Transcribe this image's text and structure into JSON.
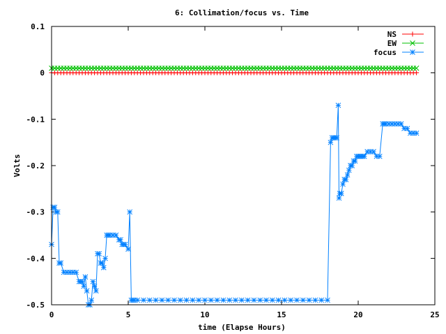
{
  "chart_data": {
    "type": "line",
    "title": "6: Collimation/focus vs. Time",
    "xlabel": "time (Elapse Hours)",
    "ylabel": "Volts",
    "xlim": [
      0,
      25
    ],
    "ylim": [
      -0.5,
      0.1
    ],
    "x_ticks": [
      0,
      5,
      10,
      15,
      20,
      25
    ],
    "x_tick_labels": [
      "0",
      "5",
      "10",
      "15",
      "20",
      "25"
    ],
    "y_ticks": [
      0.1,
      0,
      -0.1,
      -0.2,
      -0.3,
      -0.4,
      -0.5
    ],
    "y_tick_labels": [
      "0.1",
      "0",
      "-0.1",
      "-0.2",
      "-0.3",
      "-0.4",
      "-0.5"
    ],
    "grid": false,
    "legend_position": "top-right",
    "series": [
      {
        "name": "NS",
        "color": "#ff0000",
        "marker": "plus",
        "x": [
          0.0,
          0.2,
          0.4,
          0.6,
          0.8,
          1.0,
          1.2,
          1.4,
          1.6,
          1.8,
          2.0,
          2.2,
          2.4,
          2.6,
          2.8,
          3.0,
          3.2,
          3.4,
          3.6,
          3.8,
          4.0,
          4.2,
          4.4,
          4.6,
          4.8,
          5.0,
          5.2,
          5.4,
          5.6,
          5.8,
          6.0,
          6.2,
          6.4,
          6.6,
          6.8,
          7.0,
          7.2,
          7.4,
          7.6,
          7.8,
          8.0,
          8.2,
          8.4,
          8.6,
          8.8,
          9.0,
          9.2,
          9.4,
          9.6,
          9.8,
          10.0,
          10.2,
          10.4,
          10.6,
          10.8,
          11.0,
          11.2,
          11.4,
          11.6,
          11.8,
          12.0,
          12.2,
          12.4,
          12.6,
          12.8,
          13.0,
          13.2,
          13.4,
          13.6,
          13.8,
          14.0,
          14.2,
          14.4,
          14.6,
          14.8,
          15.0,
          15.2,
          15.4,
          15.6,
          15.8,
          16.0,
          16.2,
          16.4,
          16.6,
          16.8,
          17.0,
          17.2,
          17.4,
          17.6,
          17.8,
          18.0,
          18.2,
          18.4,
          18.6,
          18.8,
          19.0,
          19.2,
          19.4,
          19.6,
          19.8,
          20.0,
          20.2,
          20.4,
          20.6,
          20.8,
          21.0,
          21.2,
          21.4,
          21.6,
          21.8,
          22.0,
          22.2,
          22.4,
          22.6,
          22.8,
          23.0,
          23.2,
          23.4,
          23.6,
          23.8
        ],
        "y": [
          0.0,
          0.0,
          0.0,
          0.0,
          0.0,
          0.0,
          0.0,
          0.0,
          0.0,
          0.0,
          0.0,
          0.0,
          0.0,
          0.0,
          0.0,
          0.0,
          0.0,
          0.0,
          0.0,
          0.0,
          0.0,
          0.0,
          0.0,
          0.0,
          0.0,
          0.0,
          0.0,
          0.0,
          0.0,
          0.0,
          0.0,
          0.0,
          0.0,
          0.0,
          0.0,
          0.0,
          0.0,
          0.0,
          0.0,
          0.0,
          0.0,
          0.0,
          0.0,
          0.0,
          0.0,
          0.0,
          0.0,
          0.0,
          0.0,
          0.0,
          0.0,
          0.0,
          0.0,
          0.0,
          0.0,
          0.0,
          0.0,
          0.0,
          0.0,
          0.0,
          0.0,
          0.0,
          0.0,
          0.0,
          0.0,
          0.0,
          0.0,
          0.0,
          0.0,
          0.0,
          0.0,
          0.0,
          0.0,
          0.0,
          0.0,
          0.0,
          0.0,
          0.0,
          0.0,
          0.0,
          0.0,
          0.0,
          0.0,
          0.0,
          0.0,
          0.0,
          0.0,
          0.0,
          0.0,
          0.0,
          0.0,
          0.0,
          0.0,
          0.0,
          0.0,
          0.0,
          0.0,
          0.0,
          0.0,
          0.0,
          0.0,
          0.0,
          0.0,
          0.0,
          0.0,
          0.0,
          0.0,
          0.0,
          0.0,
          0.0,
          0.0,
          0.0,
          0.0,
          0.0,
          0.0,
          0.0,
          0.0,
          0.0,
          0.0,
          0.0
        ]
      },
      {
        "name": "EW",
        "color": "#00c000",
        "marker": "cross",
        "x": [
          0.0,
          0.2,
          0.4,
          0.6,
          0.8,
          1.0,
          1.2,
          1.4,
          1.6,
          1.8,
          2.0,
          2.2,
          2.4,
          2.6,
          2.8,
          3.0,
          3.2,
          3.4,
          3.6,
          3.8,
          4.0,
          4.2,
          4.4,
          4.6,
          4.8,
          5.0,
          5.2,
          5.4,
          5.6,
          5.8,
          6.0,
          6.2,
          6.4,
          6.6,
          6.8,
          7.0,
          7.2,
          7.4,
          7.6,
          7.8,
          8.0,
          8.2,
          8.4,
          8.6,
          8.8,
          9.0,
          9.2,
          9.4,
          9.6,
          9.8,
          10.0,
          10.2,
          10.4,
          10.6,
          10.8,
          11.0,
          11.2,
          11.4,
          11.6,
          11.8,
          12.0,
          12.2,
          12.4,
          12.6,
          12.8,
          13.0,
          13.2,
          13.4,
          13.6,
          13.8,
          14.0,
          14.2,
          14.4,
          14.6,
          14.8,
          15.0,
          15.2,
          15.4,
          15.6,
          15.8,
          16.0,
          16.2,
          16.4,
          16.6,
          16.8,
          17.0,
          17.2,
          17.4,
          17.6,
          17.8,
          18.0,
          18.2,
          18.4,
          18.6,
          18.8,
          19.0,
          19.2,
          19.4,
          19.6,
          19.8,
          20.0,
          20.2,
          20.4,
          20.6,
          20.8,
          21.0,
          21.2,
          21.4,
          21.6,
          21.8,
          22.0,
          22.2,
          22.4,
          22.6,
          22.8,
          23.0,
          23.2,
          23.4,
          23.6,
          23.8
        ],
        "y": [
          0.01,
          0.01,
          0.01,
          0.01,
          0.01,
          0.01,
          0.01,
          0.01,
          0.01,
          0.01,
          0.01,
          0.01,
          0.01,
          0.01,
          0.01,
          0.01,
          0.01,
          0.01,
          0.01,
          0.01,
          0.01,
          0.01,
          0.01,
          0.01,
          0.01,
          0.01,
          0.01,
          0.01,
          0.01,
          0.01,
          0.01,
          0.01,
          0.01,
          0.01,
          0.01,
          0.01,
          0.01,
          0.01,
          0.01,
          0.01,
          0.01,
          0.01,
          0.01,
          0.01,
          0.01,
          0.01,
          0.01,
          0.01,
          0.01,
          0.01,
          0.01,
          0.01,
          0.01,
          0.01,
          0.01,
          0.01,
          0.01,
          0.01,
          0.01,
          0.01,
          0.01,
          0.01,
          0.01,
          0.01,
          0.01,
          0.01,
          0.01,
          0.01,
          0.01,
          0.01,
          0.01,
          0.01,
          0.01,
          0.01,
          0.01,
          0.01,
          0.01,
          0.01,
          0.01,
          0.01,
          0.01,
          0.01,
          0.01,
          0.01,
          0.01,
          0.01,
          0.01,
          0.01,
          0.01,
          0.01,
          0.01,
          0.01,
          0.01,
          0.01,
          0.01,
          0.01,
          0.01,
          0.01,
          0.01,
          0.01,
          0.01,
          0.01,
          0.01,
          0.01,
          0.01,
          0.01,
          0.01,
          0.01,
          0.01,
          0.01,
          0.01,
          0.01,
          0.01,
          0.01,
          0.01,
          0.01,
          0.01,
          0.01,
          0.01,
          0.01
        ]
      },
      {
        "name": "focus",
        "color": "#0080ff",
        "marker": "star",
        "x": [
          0.0,
          0.1,
          0.2,
          0.3,
          0.4,
          0.5,
          0.6,
          0.8,
          1.0,
          1.2,
          1.4,
          1.6,
          1.8,
          1.9,
          2.0,
          2.1,
          2.2,
          2.3,
          2.4,
          2.5,
          2.6,
          2.7,
          2.8,
          2.9,
          3.0,
          3.1,
          3.2,
          3.3,
          3.4,
          3.5,
          3.6,
          3.7,
          3.8,
          4.0,
          4.2,
          4.4,
          4.5,
          4.6,
          4.7,
          4.8,
          5.0,
          5.1,
          5.2,
          5.3,
          5.4,
          5.6,
          6.0,
          6.4,
          6.8,
          7.2,
          7.6,
          8.0,
          8.4,
          8.8,
          9.2,
          9.6,
          10.0,
          10.4,
          10.8,
          11.2,
          11.6,
          12.0,
          12.4,
          12.8,
          13.2,
          13.6,
          14.0,
          14.4,
          14.8,
          15.2,
          15.6,
          16.0,
          16.4,
          16.8,
          17.2,
          17.6,
          18.0,
          18.2,
          18.3,
          18.4,
          18.5,
          18.6,
          18.7,
          18.75,
          18.8,
          18.9,
          19.0,
          19.1,
          19.2,
          19.3,
          19.4,
          19.5,
          19.6,
          19.7,
          19.8,
          19.9,
          20.0,
          20.1,
          20.2,
          20.3,
          20.4,
          20.6,
          20.8,
          21.0,
          21.2,
          21.4,
          21.6,
          21.7,
          21.8,
          22.0,
          22.2,
          22.4,
          22.6,
          22.8,
          23.0,
          23.2,
          23.4,
          23.6,
          23.8
        ],
        "y": [
          -0.37,
          -0.29,
          -0.29,
          -0.3,
          -0.3,
          -0.41,
          -0.41,
          -0.43,
          -0.43,
          -0.43,
          -0.43,
          -0.43,
          -0.45,
          -0.45,
          -0.45,
          -0.46,
          -0.44,
          -0.47,
          -0.5,
          -0.5,
          -0.49,
          -0.45,
          -0.46,
          -0.47,
          -0.39,
          -0.39,
          -0.41,
          -0.41,
          -0.42,
          -0.4,
          -0.35,
          -0.35,
          -0.35,
          -0.35,
          -0.35,
          -0.36,
          -0.36,
          -0.37,
          -0.37,
          -0.37,
          -0.38,
          -0.3,
          -0.49,
          -0.49,
          -0.49,
          -0.49,
          -0.49,
          -0.49,
          -0.49,
          -0.49,
          -0.49,
          -0.49,
          -0.49,
          -0.49,
          -0.49,
          -0.49,
          -0.49,
          -0.49,
          -0.49,
          -0.49,
          -0.49,
          -0.49,
          -0.49,
          -0.49,
          -0.49,
          -0.49,
          -0.49,
          -0.49,
          -0.49,
          -0.49,
          -0.49,
          -0.49,
          -0.49,
          -0.49,
          -0.49,
          -0.49,
          -0.49,
          -0.15,
          -0.14,
          -0.14,
          -0.14,
          -0.14,
          -0.07,
          -0.27,
          -0.26,
          -0.26,
          -0.24,
          -0.23,
          -0.23,
          -0.22,
          -0.21,
          -0.2,
          -0.2,
          -0.19,
          -0.19,
          -0.18,
          -0.18,
          -0.18,
          -0.18,
          -0.18,
          -0.18,
          -0.17,
          -0.17,
          -0.17,
          -0.18,
          -0.18,
          -0.11,
          -0.11,
          -0.11,
          -0.11,
          -0.11,
          -0.11,
          -0.11,
          -0.11,
          -0.12,
          -0.12,
          -0.13,
          -0.13,
          -0.13
        ]
      }
    ]
  }
}
